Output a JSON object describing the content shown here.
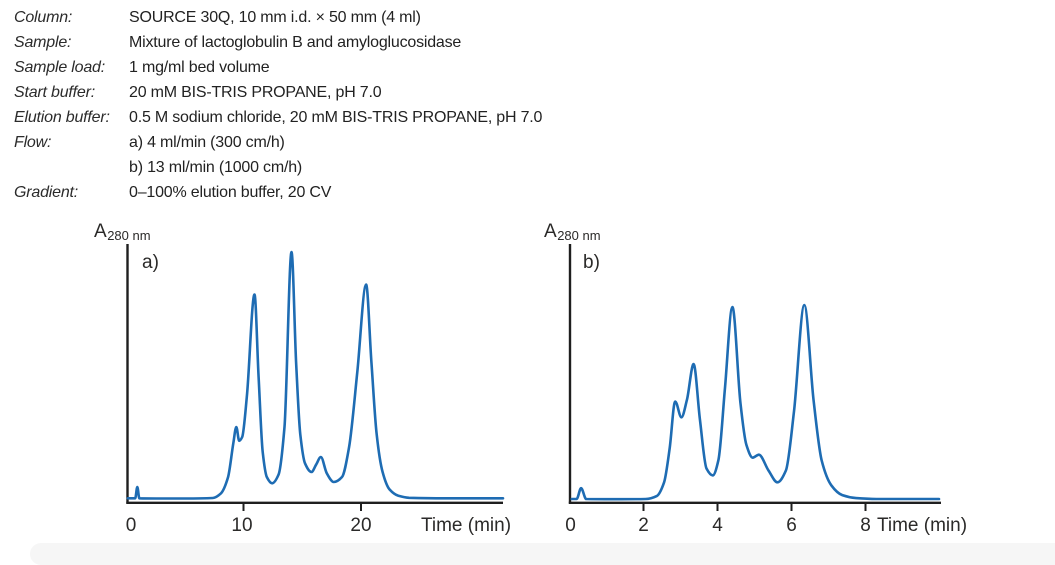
{
  "conditions": [
    {
      "label": "Column:",
      "value": "SOURCE 30Q, 10 mm i.d. × 50 mm (4 ml)"
    },
    {
      "label": "Sample:",
      "value": "Mixture of lactoglobulin B and amyloglucosidase"
    },
    {
      "label": "Sample load:",
      "value": "1 mg/ml bed volume"
    },
    {
      "label": "Start buffer:",
      "value": "20 mM BIS-TRIS PROPANE, pH 7.0"
    },
    {
      "label": "Elution buffer:",
      "value": "0.5 M sodium chloride, 20 mM BIS-TRIS PROPANE, pH 7.0"
    },
    {
      "label": "Flow:",
      "value": "a) 4 ml/min (300 cm/h)",
      "value2": "b) 13 ml/min (1000 cm/h)"
    },
    {
      "label": "Gradient:",
      "value": "0–100% elution buffer, 20 CV"
    }
  ],
  "colors": {
    "curve": "#1e6cb3",
    "axis": "#1f1f1f",
    "text": "#2b2a29"
  },
  "chart_data": [
    {
      "type": "line",
      "panel_label": "a)",
      "ylabel": "A",
      "ylabel_sub": "280 nm",
      "xlabel": "Time (min)",
      "x_ticks": [
        0,
        10,
        20
      ],
      "xlim": [
        0,
        32
      ],
      "ylim_note": "absorbance normalized to tallest peak = 1.0",
      "grid": false,
      "peak_times_min": [
        9.3,
        10.85,
        14.0,
        16.5,
        20.35
      ],
      "peak_heights_rel": [
        0.3,
        0.83,
        1.0,
        0.18,
        0.87
      ],
      "series": [
        {
          "name": "A280 nm, flow 4 ml/min (300 cm/h)",
          "points": [
            [
              0.08,
              0.015
            ],
            [
              0.7,
              0.015
            ],
            [
              0.88,
              0.06
            ],
            [
              1.05,
              0.015
            ],
            [
              2.5,
              0.014
            ],
            [
              5.0,
              0.014
            ],
            [
              7.3,
              0.016
            ],
            [
              8.0,
              0.035
            ],
            [
              8.6,
              0.1
            ],
            [
              9.05,
              0.235
            ],
            [
              9.3,
              0.3
            ],
            [
              9.55,
              0.245
            ],
            [
              9.8,
              0.26
            ],
            [
              10.2,
              0.42
            ],
            [
              10.85,
              0.83
            ],
            [
              11.2,
              0.5
            ],
            [
              11.55,
              0.2
            ],
            [
              11.9,
              0.1
            ],
            [
              12.35,
              0.075
            ],
            [
              12.9,
              0.11
            ],
            [
              13.4,
              0.3
            ],
            [
              14.0,
              1.0
            ],
            [
              14.4,
              0.55
            ],
            [
              14.75,
              0.27
            ],
            [
              15.15,
              0.155
            ],
            [
              15.7,
              0.12
            ],
            [
              16.1,
              0.15
            ],
            [
              16.5,
              0.18
            ],
            [
              17.0,
              0.115
            ],
            [
              17.6,
              0.08
            ],
            [
              18.3,
              0.1
            ],
            [
              18.9,
              0.22
            ],
            [
              19.6,
              0.52
            ],
            [
              20.35,
              0.87
            ],
            [
              20.8,
              0.56
            ],
            [
              21.25,
              0.27
            ],
            [
              21.75,
              0.12
            ],
            [
              22.35,
              0.05
            ],
            [
              23.1,
              0.025
            ],
            [
              24.0,
              0.017
            ],
            [
              27.0,
              0.015
            ],
            [
              32.0,
              0.015
            ]
          ]
        }
      ]
    },
    {
      "type": "line",
      "panel_label": "b)",
      "ylabel": "A",
      "ylabel_sub": "280 nm",
      "xlabel": "Time (min)",
      "x_ticks": [
        0,
        2,
        4,
        6,
        8
      ],
      "xlim": [
        0,
        10
      ],
      "ylim_note": "absorbance normalized to tallest peak = 1.0",
      "grid": false,
      "peak_times_min": [
        2.85,
        3.35,
        4.4,
        5.12,
        6.35
      ],
      "peak_heights_rel": [
        0.51,
        0.7,
        0.99,
        0.24,
        1.0
      ],
      "series": [
        {
          "name": "A280 nm, flow 13 ml/min (1000 cm/h)",
          "points": [
            [
              0.05,
              0.015
            ],
            [
              0.18,
              0.015
            ],
            [
              0.3,
              0.07
            ],
            [
              0.44,
              0.015
            ],
            [
              1.2,
              0.014
            ],
            [
              2.05,
              0.015
            ],
            [
              2.35,
              0.03
            ],
            [
              2.55,
              0.1
            ],
            [
              2.7,
              0.27
            ],
            [
              2.85,
              0.51
            ],
            [
              3.02,
              0.43
            ],
            [
              3.17,
              0.52
            ],
            [
              3.35,
              0.7
            ],
            [
              3.52,
              0.42
            ],
            [
              3.7,
              0.17
            ],
            [
              3.87,
              0.135
            ],
            [
              4.02,
              0.21
            ],
            [
              4.2,
              0.58
            ],
            [
              4.4,
              0.99
            ],
            [
              4.62,
              0.5
            ],
            [
              4.78,
              0.29
            ],
            [
              4.95,
              0.225
            ],
            [
              5.12,
              0.24
            ],
            [
              5.38,
              0.16
            ],
            [
              5.62,
              0.1
            ],
            [
              5.85,
              0.16
            ],
            [
              6.07,
              0.46
            ],
            [
              6.35,
              1.0
            ],
            [
              6.6,
              0.52
            ],
            [
              6.82,
              0.21
            ],
            [
              7.08,
              0.085
            ],
            [
              7.38,
              0.035
            ],
            [
              7.75,
              0.02
            ],
            [
              8.3,
              0.015
            ],
            [
              10.0,
              0.015
            ]
          ]
        }
      ]
    }
  ]
}
